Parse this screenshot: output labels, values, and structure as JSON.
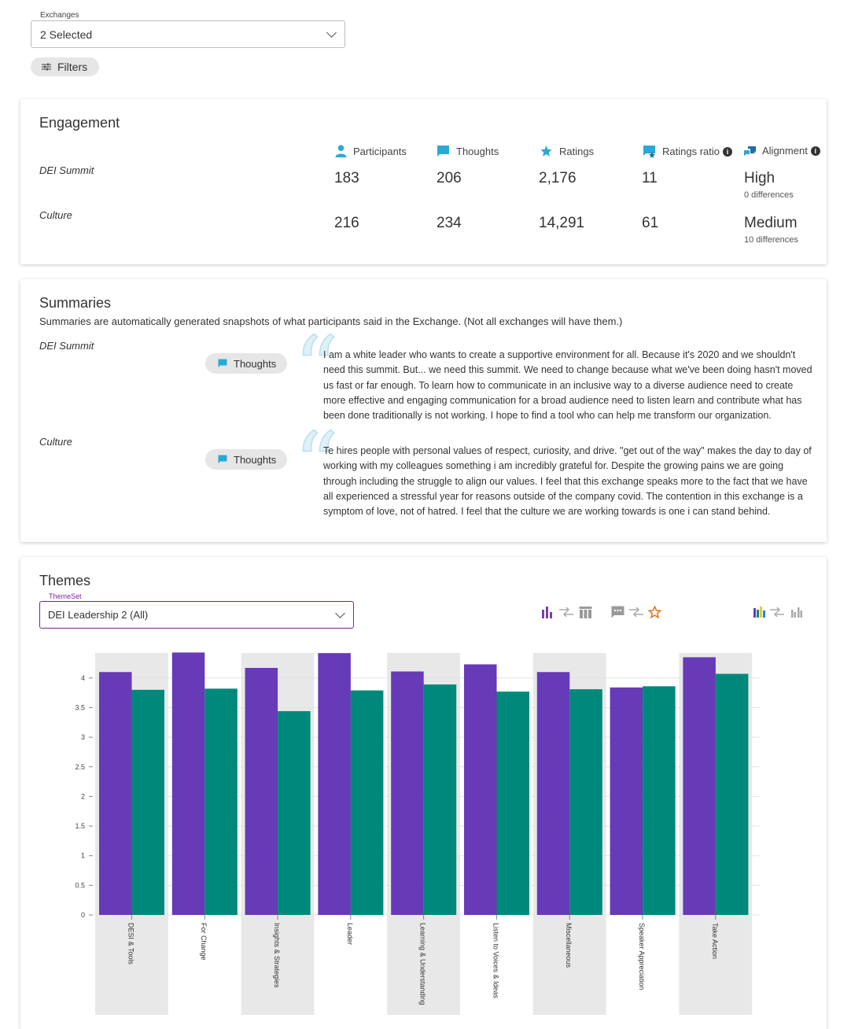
{
  "exchanges_select": {
    "legend": "Exchanges",
    "value": "2 Selected"
  },
  "filters_label": "Filters",
  "engagement": {
    "title": "Engagement",
    "headers": {
      "participants": "Participants",
      "thoughts": "Thoughts",
      "ratings": "Ratings",
      "ratings_ratio": "Ratings ratio",
      "alignment": "Alignment"
    },
    "rows": [
      {
        "name": "DEI Summit",
        "participants": "183",
        "thoughts": "206",
        "ratings": "2,176",
        "ratio": "11",
        "alignment": "High",
        "differences": "0 differences"
      },
      {
        "name": "Culture",
        "participants": "216",
        "thoughts": "234",
        "ratings": "14,291",
        "ratio": "61",
        "alignment": "Medium",
        "differences": "10 differences"
      }
    ],
    "info_glyph": "i"
  },
  "summaries": {
    "title": "Summaries",
    "description": "Summaries are automatically generated snapshots of what participants said in the Exchange. (Not all exchanges will have them.)",
    "chip_label": "Thoughts",
    "quote_glyph": "“",
    "items": [
      {
        "name": "DEI Summit",
        "lines": [
          "I am a white leader who wants to create a supportive environment for all. Because it's 2020 and we shouldn't",
          "need this summit. But... we need this summit. We need to change because what we've been doing hasn't moved",
          "us fast or far enough. To learn how to communicate in an inclusive way to a diverse audience need to create",
          "more effective and engaging communication for a broad audience need to listen learn and contribute what has",
          "been done traditionally is not working. I hope to find a tool who can help me transform our organization."
        ]
      },
      {
        "name": "Culture",
        "lines": [
          "Te hires people with personal values of respect, curiosity, and drive. \"get out of the way\" makes the day to day of",
          "working with my colleagues something i am incredibly grateful for. Despite the growing pains we are going",
          "through including the struggle to align our values. I feel that this exchange speaks more to the fact that we have",
          "all experienced a stressful year for reasons outside of the company covid. The contention in this exchange is a",
          "symptom of love, not of hatred. I feel that the culture we are working towards is one i can stand behind."
        ]
      }
    ]
  },
  "themes": {
    "title": "Themes",
    "select_legend": "ThemeSet",
    "select_value": "DEI Leadership 2 (All)",
    "icons": [
      "bar-chart-icon",
      "compare-arrows-icon",
      "table-icon",
      "comment-icon",
      "compare-arrows-icon",
      "star-icon",
      "color-bar-chart-icon",
      "compare-arrows-icon",
      "grouped-bar-icon"
    ],
    "colors": {
      "series1": "#673ab7",
      "series2": "#00897b",
      "band": "#e8e8e8"
    }
  },
  "chart_data": {
    "type": "bar",
    "categories": [
      "DESI & Tools",
      "For Change",
      "Insights & Strategies",
      "Leader",
      "Learning & Understanding",
      "Listen to Voices & Ideas",
      "Miscellaneous",
      "Speaker Appreciation",
      "Take Action"
    ],
    "series": [
      {
        "values": [
          4.1,
          4.43,
          4.17,
          4.42,
          4.11,
          4.23,
          4.1,
          3.84,
          4.35
        ]
      },
      {
        "values": [
          3.8,
          3.82,
          3.44,
          3.79,
          3.89,
          3.77,
          3.81,
          3.86,
          4.07
        ]
      }
    ],
    "ylim": [
      0,
      4.4
    ],
    "yticks": [
      "0",
      "0.5",
      "1",
      "1.5",
      "2",
      "2.5",
      "3",
      "3.5",
      "4"
    ],
    "ytick_values": [
      0,
      0.5,
      1,
      1.5,
      2,
      2.5,
      3,
      3.5,
      4
    ],
    "grid": true
  }
}
